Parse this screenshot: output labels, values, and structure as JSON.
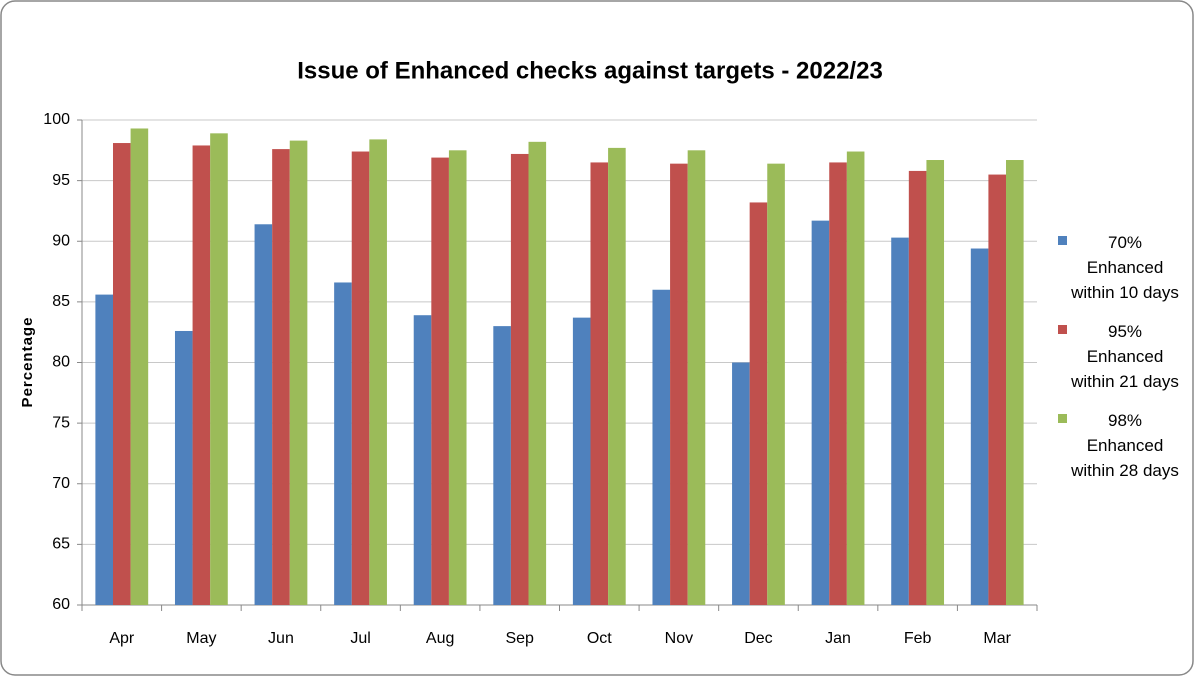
{
  "chart_data": {
    "type": "bar",
    "title": "Issue of Enhanced checks against targets - 2022/23",
    "y_label": "Percentage",
    "categories": [
      "Apr",
      "May",
      "Jun",
      "Jul",
      "Aug",
      "Sep",
      "Oct",
      "Nov",
      "Dec",
      "Jan",
      "Feb",
      "Mar"
    ],
    "series": [
      {
        "name": "70% Enhanced within 10 days",
        "color": "#4f81bd",
        "values": [
          85.6,
          82.6,
          91.4,
          86.6,
          83.9,
          83.0,
          83.7,
          86.0,
          80.0,
          91.7,
          90.3,
          89.4
        ]
      },
      {
        "name": "95% Enhanced within 21 days",
        "color": "#c0504d",
        "values": [
          98.1,
          97.9,
          97.6,
          97.4,
          96.9,
          97.2,
          96.5,
          96.4,
          93.2,
          96.5,
          95.8,
          95.5
        ]
      },
      {
        "name": "98% Enhanced within 28 days",
        "color": "#9bbb59",
        "values": [
          99.3,
          98.9,
          98.3,
          98.4,
          97.5,
          98.2,
          97.7,
          97.5,
          96.4,
          97.4,
          96.7,
          96.7
        ]
      }
    ],
    "ylim": [
      60,
      100
    ],
    "yticks": [
      60,
      65,
      70,
      75,
      80,
      85,
      90,
      95,
      100
    ],
    "grid": true,
    "legend": "right"
  }
}
